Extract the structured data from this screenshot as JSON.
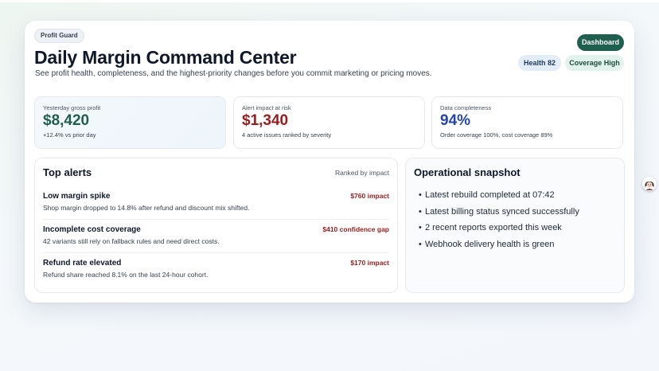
{
  "header": {
    "tag": "Profit Guard",
    "title": "Daily Margin Command Center",
    "subtitle": "See profit health, completeness, and the highest-priority changes before you commit marketing or pricing moves.",
    "dashboard_button": "Dashboard",
    "badges": {
      "health": "Health 82",
      "coverage": "Coverage High"
    }
  },
  "stats": [
    {
      "label": "Yesterday gross profit",
      "value": "$8,420",
      "note": "+12.4% vs prior day"
    },
    {
      "label": "Alert impact at risk",
      "value": "$1,340",
      "note": "4 active issues ranked by severity"
    },
    {
      "label": "Data completeness",
      "value": "94%",
      "note": "Order coverage 100%, cost coverage 89%"
    }
  ],
  "alerts": {
    "title": "Top alerts",
    "meta": "Ranked by impact",
    "items": [
      {
        "title": "Low margin spike",
        "impact": "$760 impact",
        "description": "Shop margin dropped to 14.8% after refund and discount mix shifted."
      },
      {
        "title": "Incomplete cost coverage",
        "impact": "$410 confidence gap",
        "description": "42 variants still rely on fallback rules and need direct costs."
      },
      {
        "title": "Refund rate elevated",
        "impact": "$170 impact",
        "description": "Refund share reached 8.1% on the last 24-hour cohort."
      }
    ]
  },
  "snapshot": {
    "title": "Operational snapshot",
    "bullet": "•",
    "items": [
      "Latest rebuild completed at 07:42",
      "Latest billing status synced successfully",
      "2 recent reports exported this week",
      "Webhook delivery health is green"
    ]
  },
  "colors": {
    "accent": "#1f5f4f",
    "risk": "#9b1c1c",
    "info": "#2446a8"
  },
  "icons": {
    "avatar": "avatar-face-icon"
  }
}
